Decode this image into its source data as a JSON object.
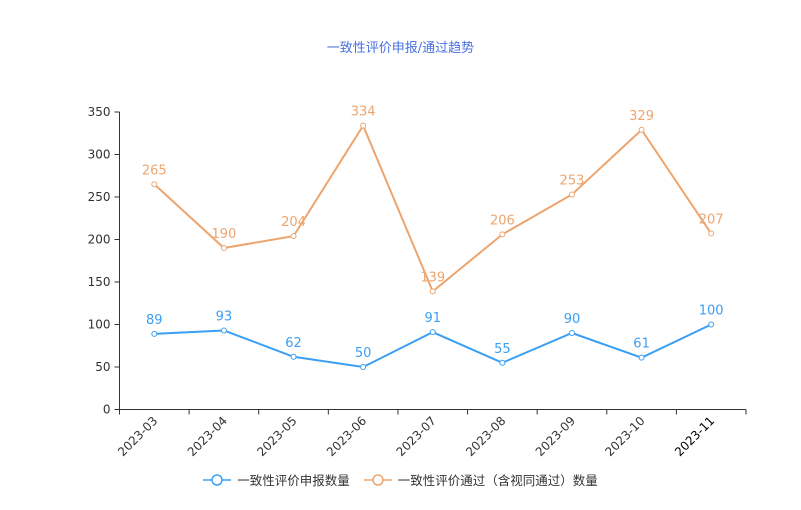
{
  "chart_data": {
    "type": "line",
    "title": "一致性评价申报/通过趋势",
    "categories": [
      "2023-03",
      "2023-04",
      "2023-05",
      "2023-06",
      "2023-07",
      "2023-08",
      "2023-09",
      "2023-10",
      "2023-11"
    ],
    "series": [
      {
        "name": "一致性评价申报数量",
        "color": "#3a9ff5",
        "values": [
          89,
          93,
          62,
          50,
          91,
          55,
          90,
          61,
          100
        ]
      },
      {
        "name": "一致性评价通过（含视同通过）数量",
        "color": "#eda56f",
        "values": [
          265,
          190,
          204,
          334,
          139,
          206,
          253,
          329,
          207
        ]
      }
    ],
    "ylim": [
      0,
      350
    ],
    "yticks": [
      0,
      50,
      100,
      150,
      200,
      250,
      300,
      350
    ],
    "grid": false,
    "legend": "bottom",
    "xlabel": "",
    "ylabel": ""
  }
}
